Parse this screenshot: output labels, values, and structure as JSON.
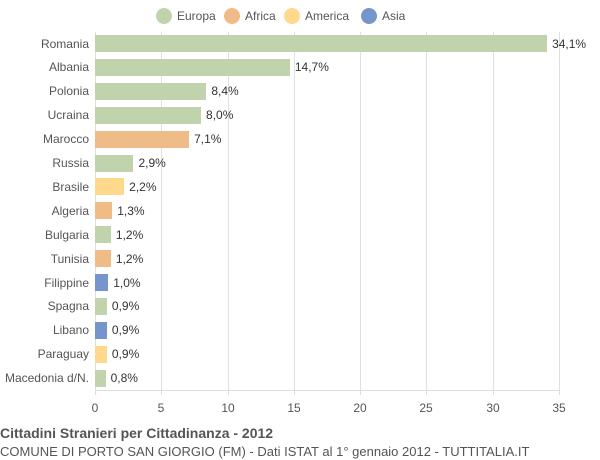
{
  "chart_data": {
    "type": "bar",
    "orientation": "horizontal",
    "title": "Cittadini Stranieri per Cittadinanza - 2012",
    "subtitle": "COMUNE DI PORTO SAN GIORGIO (FM) - Dati ISTAT al 1° gennaio 2012 - TUTTITALIA.IT",
    "xlabel": "",
    "ylabel": "",
    "xlim": [
      0,
      35
    ],
    "x_ticks": [
      "0",
      "5",
      "10",
      "15",
      "20",
      "25",
      "30",
      "35"
    ],
    "grid": true,
    "legend_position": "top",
    "legend": [
      {
        "name": "Europa",
        "color": "#c0d3ad"
      },
      {
        "name": "Africa",
        "color": "#efbb87"
      },
      {
        "name": "America",
        "color": "#fed88b"
      },
      {
        "name": "Asia",
        "color": "#7595cc"
      }
    ],
    "categories": [
      "Romania",
      "Albania",
      "Polonia",
      "Ucraina",
      "Marocco",
      "Russia",
      "Brasile",
      "Algeria",
      "Bulgaria",
      "Tunisia",
      "Filippine",
      "Spagna",
      "Libano",
      "Paraguay",
      "Macedonia d/N."
    ],
    "values": [
      34.1,
      14.7,
      8.4,
      8.0,
      7.1,
      2.9,
      2.2,
      1.3,
      1.2,
      1.2,
      1.0,
      0.9,
      0.9,
      0.9,
      0.8
    ],
    "value_labels": [
      "34,1%",
      "14,7%",
      "8,4%",
      "8,0%",
      "7,1%",
      "2,9%",
      "2,2%",
      "1,3%",
      "1,2%",
      "1,2%",
      "1,0%",
      "0,9%",
      "0,9%",
      "0,9%",
      "0,8%"
    ],
    "groups": [
      "Europa",
      "Europa",
      "Europa",
      "Europa",
      "Africa",
      "Europa",
      "America",
      "Africa",
      "Europa",
      "Africa",
      "Asia",
      "Europa",
      "Asia",
      "America",
      "Europa"
    ]
  }
}
